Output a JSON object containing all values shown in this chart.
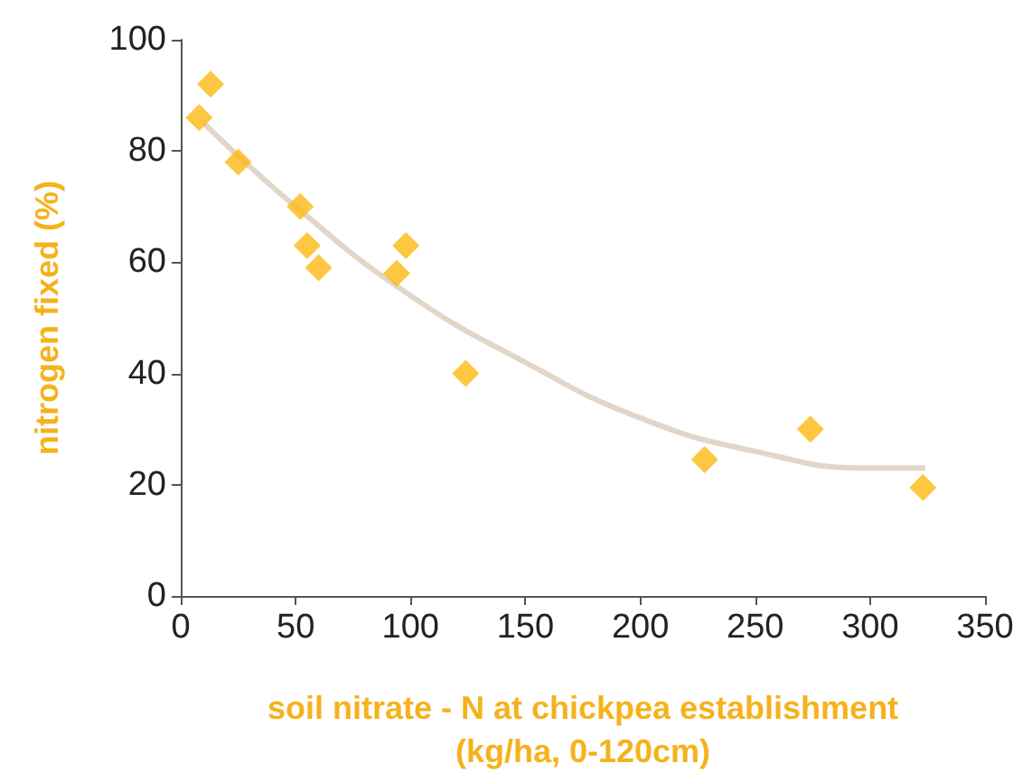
{
  "chart_data": {
    "type": "scatter",
    "xlabel": "soil nitrate - N at chickpea establishment\n(kg/ha, 0-120cm)",
    "ylabel": "nitrogen fixed (%)",
    "xlim": [
      0,
      350
    ],
    "xticks": [
      0,
      50,
      100,
      150,
      200,
      250,
      300,
      350
    ],
    "ylim": [
      0,
      100
    ],
    "yticks": [
      0,
      20,
      40,
      60,
      80,
      100
    ],
    "grid": false,
    "marker": "diamond",
    "series": [
      {
        "color": "#fdb913",
        "x": [
          8,
          13,
          25,
          52,
          55,
          60,
          94,
          98,
          124,
          228,
          274,
          323
        ],
        "values": [
          86,
          92,
          78,
          70,
          63,
          59,
          58,
          63,
          40,
          24.5,
          30,
          19.5
        ]
      },
      {
        "type": "line",
        "color": "#e2d6c8",
        "marker": "none",
        "x": [
          10,
          50,
          100,
          150,
          200,
          250,
          300,
          324
        ],
        "values": [
          85,
          70,
          54,
          42,
          32,
          26,
          23,
          23
        ]
      }
    ]
  }
}
